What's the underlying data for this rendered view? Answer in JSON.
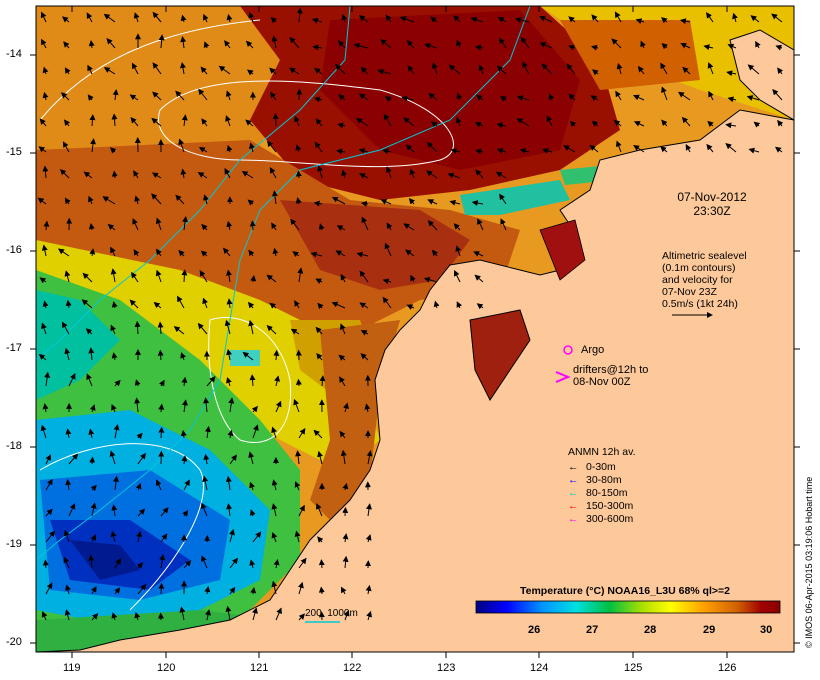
{
  "map": {
    "timestamp_date": "07-Nov-2012",
    "timestamp_time": "23:30Z",
    "altimetry_lines": [
      "Altimetric sealevel",
      "(0.1m contours)",
      "and velocity for",
      "07-Nov 23Z",
      "0.5m/s (1kt 24h)"
    ],
    "argo_label": "Argo",
    "drifters_lines": [
      "drifters@12h to",
      "08-Nov 00Z"
    ],
    "anmn_title": "ANMN 12h av.",
    "anmn_legend": [
      {
        "label": "0-30m",
        "color": "#000000"
      },
      {
        "label": "30-80m",
        "color": "#0000ff"
      },
      {
        "label": "80-150m",
        "color": "#00c8c8"
      },
      {
        "label": "150-300m",
        "color": "#ff0000"
      },
      {
        "label": "300-600m",
        "color": "#ff00ff"
      }
    ],
    "depth_label": "200  1000m",
    "colorbar_title": "Temperature (°C) NOAA16_L3U 68% ql>=2",
    "colorbar_ticks": [
      "26",
      "27",
      "28",
      "29",
      "30"
    ],
    "credit": "© IMOS 06-Apr-2015 03:19:06 Hobart time",
    "lon_ticks": [
      "119",
      "120",
      "121",
      "122",
      "123",
      "124",
      "125",
      "126"
    ],
    "lat_ticks": [
      "-14",
      "-15",
      "-16",
      "-17",
      "-18",
      "-19",
      "-20"
    ],
    "colors": {
      "land": "#fdc99a",
      "sst_scale": [
        "#000080",
        "#0000ff",
        "#0096ff",
        "#00e0e0",
        "#00c040",
        "#b0e000",
        "#ffff00",
        "#ffa000",
        "#d06000",
        "#a00000",
        "#8b0000"
      ]
    }
  }
}
